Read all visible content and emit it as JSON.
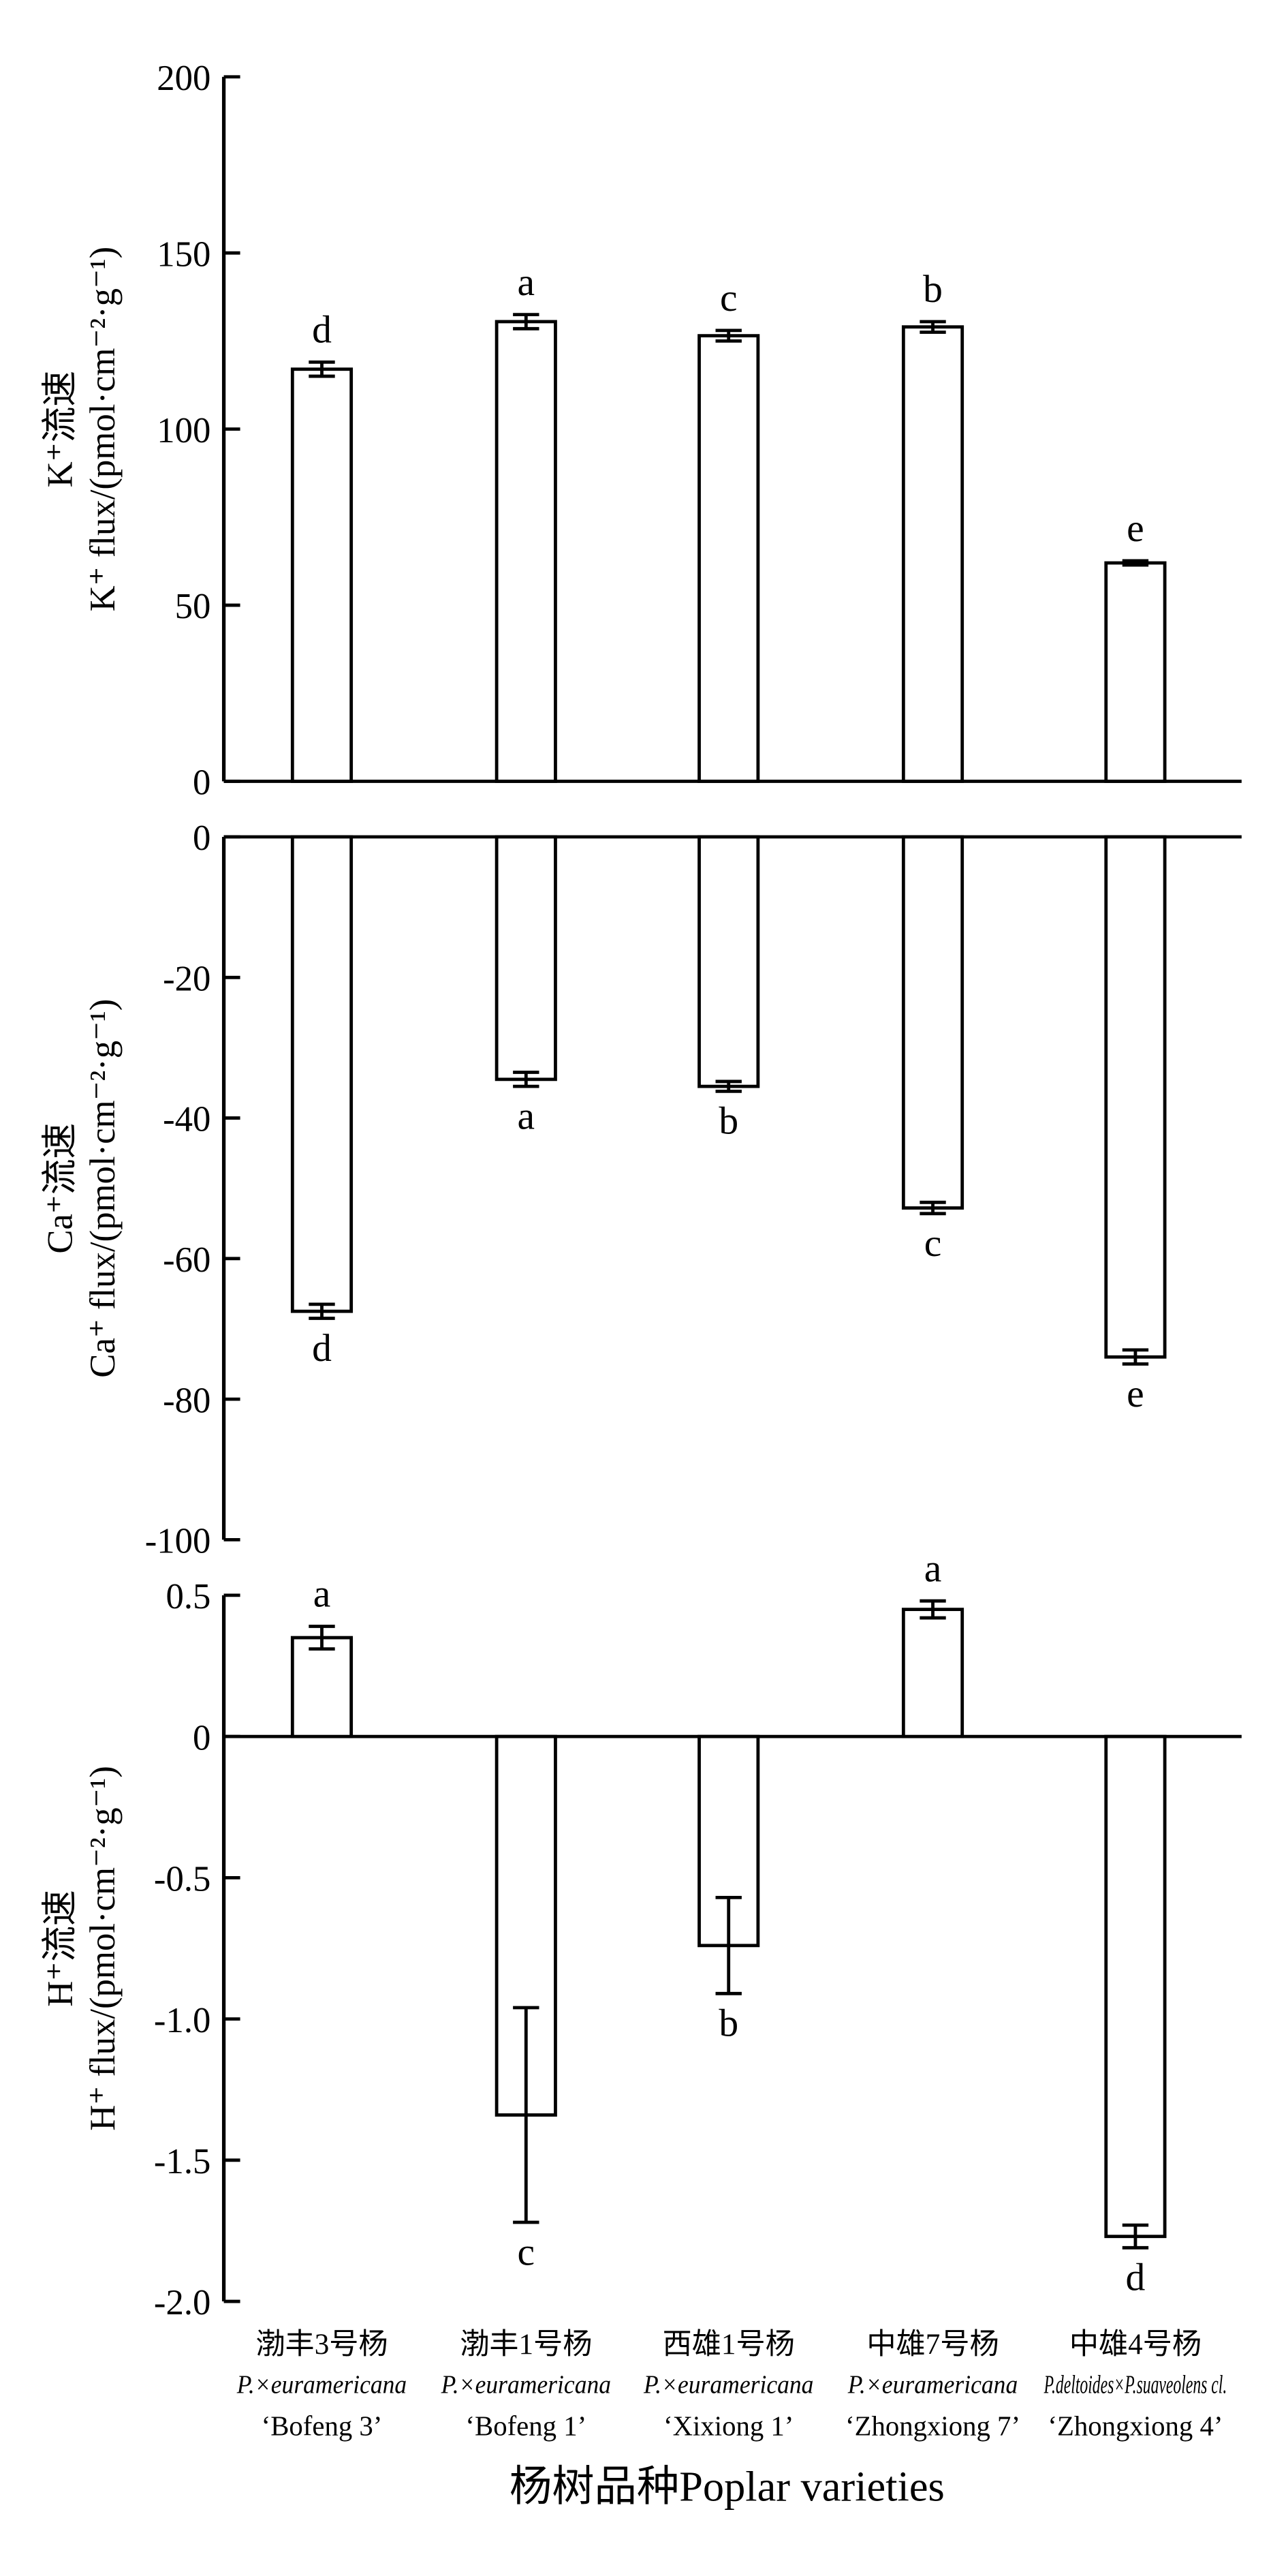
{
  "chart_data": [
    {
      "type": "bar",
      "ylabel_cn": "K⁺流速",
      "ylabel": "K⁺ flux/(pmol·cm⁻²·g⁻¹)",
      "ylim": [
        0,
        200
      ],
      "yticks": [
        0,
        50,
        100,
        150,
        200
      ],
      "values": [
        117,
        130.5,
        126.5,
        129,
        62
      ],
      "errors": [
        2,
        2,
        1.5,
        1.5,
        0.6
      ],
      "letters": [
        "d",
        "a",
        "c",
        "b",
        "e"
      ]
    },
    {
      "type": "bar",
      "ylabel_cn": "Ca⁺流速",
      "ylabel": "Ca⁺ flux/(pmol·cm⁻²·g⁻¹)",
      "ylim": [
        -100,
        0
      ],
      "yticks": [
        0,
        -20,
        -40,
        -60,
        -80,
        -100
      ],
      "values": [
        -67.5,
        -34.5,
        -35.5,
        -52.8,
        -74
      ],
      "errors": [
        1,
        1,
        0.7,
        0.8,
        1
      ],
      "letters": [
        "d",
        "a",
        "b",
        "c",
        "e"
      ]
    },
    {
      "type": "bar",
      "ylabel_cn": "H⁺流速",
      "ylabel": "H⁺ flux/(pmol·cm⁻²·g⁻¹)",
      "ylim": [
        -2.0,
        0.5
      ],
      "yticks": [
        0.5,
        0,
        -0.5,
        -1.0,
        -1.5,
        -2.0
      ],
      "ytick_labels": [
        "0.5",
        "0",
        "-0.5",
        "-1.0",
        "-1.5",
        "-2.0"
      ],
      "values": [
        0.35,
        -1.34,
        -0.74,
        0.45,
        -1.77
      ],
      "errors": [
        0.04,
        0.38,
        0.17,
        0.03,
        0.04
      ],
      "letters": [
        "a",
        "c",
        "b",
        "a",
        "d"
      ]
    }
  ],
  "categories": [
    {
      "cn": "渤丰3号杨",
      "latin": "P.×euramericana",
      "cultivar": "‘Bofeng 3’"
    },
    {
      "cn": "渤丰1号杨",
      "latin": "P.×euramericana",
      "cultivar": "‘Bofeng 1’"
    },
    {
      "cn": "西雄1号杨",
      "latin": "P.×euramericana",
      "cultivar": "‘Xixiong 1’"
    },
    {
      "cn": "中雄7号杨",
      "latin": "P.×euramericana",
      "cultivar": "‘Zhongxiong 7’"
    },
    {
      "cn": "中雄4号杨",
      "latin": "P.deltoides×P.suaveolens cl.",
      "cultivar": "‘Zhongxiong 4’"
    }
  ],
  "xlabel": "杨树品种Poplar varieties",
  "colors": {
    "bar_fill": "#ffffff",
    "stroke": "#000000"
  }
}
